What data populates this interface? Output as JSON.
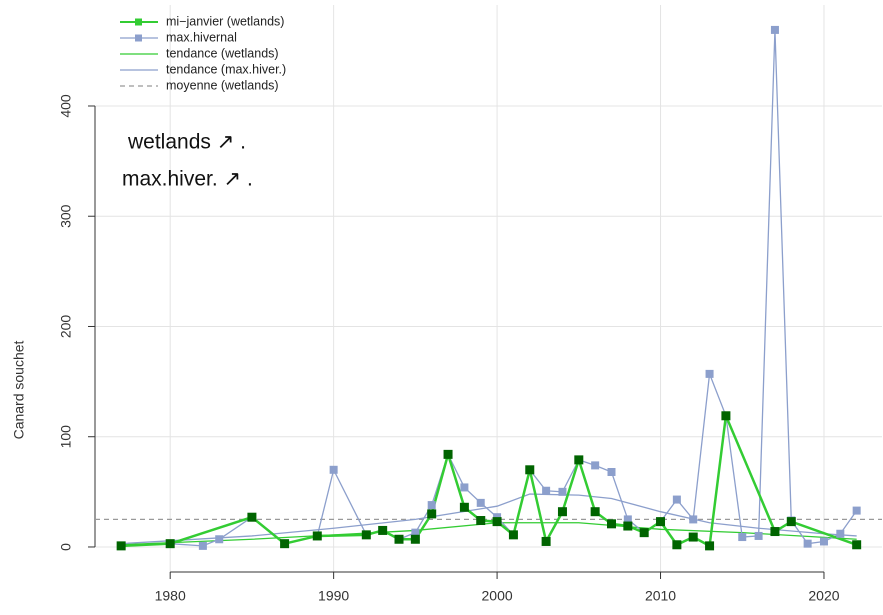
{
  "chart_data": {
    "type": "line",
    "y_label": "Canard souchet",
    "xlim": [
      1975.4,
      2023.55
    ],
    "ylim": [
      -22.7,
      491.6
    ],
    "xticks": [
      1980,
      1990,
      2000,
      2010,
      2020
    ],
    "yticks": [
      0,
      100,
      200,
      300,
      400
    ],
    "grid": true,
    "legend": "top-left",
    "annotations": [
      "wetlands  ↗ .",
      "max.hiver. ↗ ."
    ],
    "series": [
      {
        "name": "mi−janvier (wetlands)",
        "color": "#33cc33",
        "marker_color": "#006400",
        "style": "markers",
        "x": [
          1977,
          1980,
          1985,
          1987,
          1989,
          1992,
          1993,
          1994,
          1995,
          1996,
          1997,
          1998,
          1999,
          2000,
          2001,
          2002,
          2003,
          2004,
          2005,
          2006,
          2007,
          2008,
          2009,
          2010,
          2011,
          2012,
          2013,
          2014,
          2017,
          2018,
          2022
        ],
        "values": [
          1,
          3,
          27,
          3,
          10,
          11,
          15,
          7,
          7,
          30,
          84,
          36,
          24,
          23,
          11,
          70,
          5,
          32,
          79,
          32,
          21,
          19,
          13,
          23,
          2,
          9,
          1,
          119,
          14,
          23,
          2
        ]
      },
      {
        "name": "max.hivernal",
        "color": "#8c9fcc",
        "marker_color": "#8c9fcc",
        "style": "markers",
        "x": [
          1977,
          1980,
          1982,
          1983,
          1985,
          1987,
          1989,
          1990,
          1992,
          1993,
          1994,
          1995,
          1996,
          1997,
          1998,
          1999,
          2000,
          2001,
          2002,
          2003,
          2004,
          2005,
          2006,
          2007,
          2008,
          2009,
          2010,
          2011,
          2012,
          2013,
          2014,
          2015,
          2016,
          2017,
          2018,
          2019,
          2020,
          2021,
          2022
        ],
        "values": [
          1,
          3,
          1,
          7,
          27,
          3,
          10,
          70,
          11,
          15,
          7,
          13,
          38,
          84,
          54,
          40,
          27,
          11,
          70,
          51,
          50,
          79,
          74,
          68,
          25,
          13,
          23,
          43,
          25,
          157,
          119,
          9,
          10,
          469,
          24,
          3,
          5,
          12,
          33
        ]
      },
      {
        "name": "tendance (wetlands)",
        "color": "#33cc33",
        "style": "line",
        "x": [
          1977,
          1985,
          1990,
          1995,
          2000,
          2005,
          2010,
          2015,
          2022
        ],
        "values": [
          2,
          7,
          11,
          15,
          22,
          22,
          16,
          13,
          7
        ]
      },
      {
        "name": "tendance (max.hiver.)",
        "color": "#8c9fcc",
        "style": "line",
        "x": [
          1977,
          1985,
          1990,
          1995,
          2000,
          2002,
          2005,
          2007,
          2010,
          2013,
          2016,
          2020,
          2022
        ],
        "values": [
          3,
          10,
          17,
          25,
          37,
          48,
          47,
          44,
          32,
          22,
          17,
          12,
          10
        ]
      },
      {
        "name": "moyenne (wetlands)",
        "color": "#999999",
        "style": "hline",
        "value": 25
      }
    ]
  }
}
